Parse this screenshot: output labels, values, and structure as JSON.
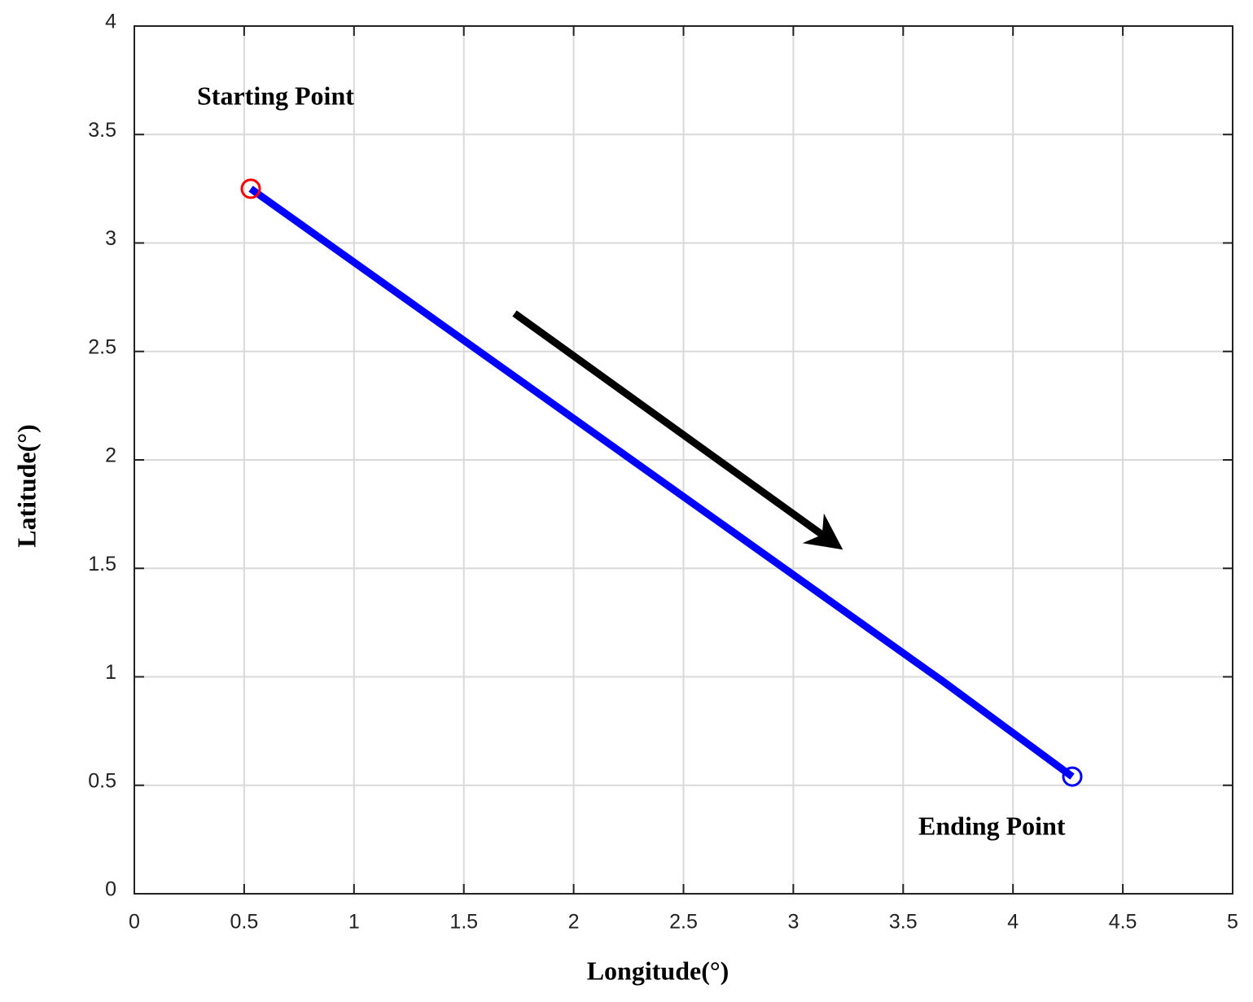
{
  "chart_data": {
    "type": "line",
    "xlabel": "Longitude(°)",
    "ylabel": "Latitude(°)",
    "x": [
      0.53,
      3.68,
      4.27
    ],
    "series": [
      {
        "color": "#0000ff",
        "values": [
          3.25,
          0.98,
          0.54
        ]
      }
    ],
    "markers": [
      {
        "x": 0.53,
        "y": 3.25,
        "color": "#ff0000"
      },
      {
        "x": 4.27,
        "y": 0.54,
        "color": "#0000ff"
      }
    ],
    "annotations": [
      "Starting Point",
      "Ending Point"
    ],
    "xlim": [
      0,
      5
    ],
    "xticks": [
      0,
      0.5,
      1,
      1.5,
      2,
      2.5,
      3,
      3.5,
      4,
      4.5,
      5
    ],
    "ylim": [
      0,
      4
    ],
    "yticks": [
      0,
      0.5,
      1,
      1.5,
      2,
      2.5,
      3,
      3.5,
      4
    ],
    "grid": true
  }
}
